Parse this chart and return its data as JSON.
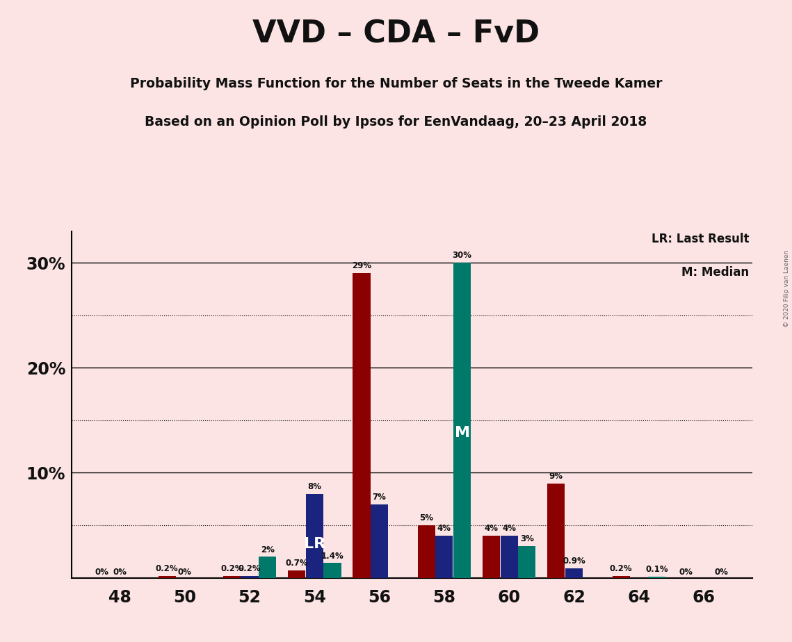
{
  "title": "VVD – CDA – FvD",
  "subtitle1": "Probability Mass Function for the Number of Seats in the Tweede Kamer",
  "subtitle2": "Based on an Opinion Poll by Ipsos for EenVandaag, 20–23 April 2018",
  "copyright": "© 2020 Filip van Laenen",
  "legend_lr": "LR: Last Result",
  "legend_m": "M: Median",
  "x_positions": [
    48,
    50,
    52,
    54,
    56,
    58,
    60,
    62,
    64,
    66
  ],
  "background_color": "#fce4e4",
  "colors": {
    "VVD": "#8b0000",
    "CDA": "#1a237e",
    "FvD": "#00796b"
  },
  "data": {
    "VVD": {
      "48": 0.0,
      "50": 0.2,
      "52": 0.2,
      "54": 0.7,
      "56": 29.0,
      "58": 5.0,
      "60": 4.0,
      "62": 9.0,
      "64": 0.2,
      "66": 0.0
    },
    "CDA": {
      "48": 0.0,
      "50": 0.0,
      "52": 0.2,
      "54": 8.0,
      "56": 7.0,
      "58": 4.0,
      "60": 4.0,
      "62": 0.9,
      "64": 0.0,
      "66": 0.0
    },
    "FvD": {
      "48": 0.0,
      "50": 0.0,
      "52": 2.0,
      "54": 1.4,
      "56": 0.0,
      "58": 30.0,
      "60": 3.0,
      "62": 0.0,
      "64": 0.1,
      "66": 0.0
    }
  },
  "bar_labels": {
    "VVD": {
      "48": "0%",
      "50": "0.2%",
      "52": "0.2%",
      "54": "0.7%",
      "56": "29%",
      "58": "5%",
      "60": "4%",
      "62": "9%",
      "64": "0.2%",
      "66": "0%"
    },
    "CDA": {
      "48": "0%",
      "50": "0%",
      "52": "0.2%",
      "54": "8%",
      "56": "7%",
      "58": "4%",
      "60": "4%",
      "62": "0.9%",
      "64": "",
      "66": ""
    },
    "FvD": {
      "48": "",
      "50": "",
      "52": "2%",
      "54": "1.4%",
      "56": "",
      "58": "30%",
      "60": "3%",
      "62": "",
      "64": "0.1%",
      "66": "0%"
    }
  },
  "lr_seat": 54,
  "lr_party": "CDA",
  "median_seat": 58,
  "median_party": "FvD",
  "ylim": 33,
  "ytick_positions": [
    10,
    20,
    30
  ],
  "ytick_labels": [
    "10%",
    "20%",
    "30%"
  ],
  "solid_gridlines": [
    10,
    20,
    30
  ],
  "dotted_gridlines": [
    5,
    15,
    25
  ]
}
